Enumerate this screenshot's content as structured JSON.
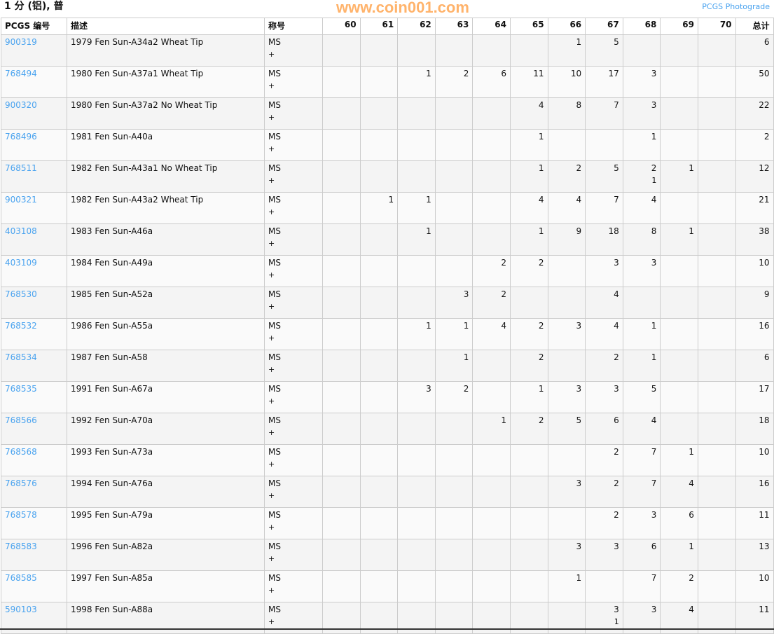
{
  "title": "1 分 (铝), 普",
  "photograde_link": "PCGS Photograde",
  "headers": [
    "PCGS 编号",
    "描述",
    "称号",
    "60",
    "61",
    "62",
    "63",
    "64",
    "65",
    "66",
    "67",
    "68",
    "69",
    "70",
    "总计"
  ],
  "rows": [
    {
      "id": "900319",
      "desc": "1979 Fen Sun-A34a2 Wheat Tip",
      "des": "MS",
      "plus": "+",
      "g": [
        "",
        "",
        "",
        "",
        "",
        "",
        "1",
        "5",
        "",
        "",
        ""
      ],
      "p": [
        "",
        "",
        "",
        "",
        "",
        "",
        "",
        "",
        "",
        "",
        ""
      ],
      "total": "6"
    },
    {
      "id": "768494",
      "desc": "1980 Fen Sun-A37a1 Wheat Tip",
      "des": "MS",
      "plus": "+",
      "g": [
        "",
        "",
        "1",
        "2",
        "6",
        "11",
        "10",
        "17",
        "3",
        "",
        ""
      ],
      "p": [
        "",
        "",
        "",
        "",
        "",
        "",
        "",
        "",
        "",
        "",
        ""
      ],
      "total": "50"
    },
    {
      "id": "900320",
      "desc": "1980 Fen Sun-A37a2 No Wheat Tip",
      "des": "MS",
      "plus": "+",
      "g": [
        "",
        "",
        "",
        "",
        "",
        "4",
        "8",
        "7",
        "3",
        "",
        ""
      ],
      "p": [
        "",
        "",
        "",
        "",
        "",
        "",
        "",
        "",
        "",
        "",
        ""
      ],
      "total": "22"
    },
    {
      "id": "768496",
      "desc": "1981 Fen Sun-A40a",
      "des": "MS",
      "plus": "+",
      "g": [
        "",
        "",
        "",
        "",
        "",
        "1",
        "",
        "",
        "1",
        "",
        ""
      ],
      "p": [
        "",
        "",
        "",
        "",
        "",
        "",
        "",
        "",
        "",
        "",
        ""
      ],
      "total": "2"
    },
    {
      "id": "768511",
      "desc": "1982 Fen Sun-A43a1 No Wheat Tip",
      "des": "MS",
      "plus": "+",
      "g": [
        "",
        "",
        "",
        "",
        "",
        "1",
        "2",
        "5",
        "2",
        "1",
        ""
      ],
      "p": [
        "",
        "",
        "",
        "",
        "",
        "",
        "",
        "",
        "1",
        "",
        ""
      ],
      "total": "12"
    },
    {
      "id": "900321",
      "desc": "1982 Fen Sun-A43a2 Wheat Tip",
      "des": "MS",
      "plus": "+",
      "g": [
        "",
        "1",
        "1",
        "",
        "",
        "4",
        "4",
        "7",
        "4",
        "",
        ""
      ],
      "p": [
        "",
        "",
        "",
        "",
        "",
        "",
        "",
        "",
        "",
        "",
        ""
      ],
      "total": "21"
    },
    {
      "id": "403108",
      "desc": "1983 Fen Sun-A46a",
      "des": "MS",
      "plus": "+",
      "g": [
        "",
        "",
        "1",
        "",
        "",
        "1",
        "9",
        "18",
        "8",
        "1",
        ""
      ],
      "p": [
        "",
        "",
        "",
        "",
        "",
        "",
        "",
        "",
        "",
        "",
        ""
      ],
      "total": "38"
    },
    {
      "id": "403109",
      "desc": "1984 Fen Sun-A49a",
      "des": "MS",
      "plus": "+",
      "g": [
        "",
        "",
        "",
        "",
        "2",
        "2",
        "",
        "3",
        "3",
        "",
        ""
      ],
      "p": [
        "",
        "",
        "",
        "",
        "",
        "",
        "",
        "",
        "",
        "",
        ""
      ],
      "total": "10"
    },
    {
      "id": "768530",
      "desc": "1985 Fen Sun-A52a",
      "des": "MS",
      "plus": "+",
      "g": [
        "",
        "",
        "",
        "3",
        "2",
        "",
        "",
        "4",
        "",
        "",
        ""
      ],
      "p": [
        "",
        "",
        "",
        "",
        "",
        "",
        "",
        "",
        "",
        "",
        ""
      ],
      "total": "9"
    },
    {
      "id": "768532",
      "desc": "1986 Fen Sun-A55a",
      "des": "MS",
      "plus": "+",
      "g": [
        "",
        "",
        "1",
        "1",
        "4",
        "2",
        "3",
        "4",
        "1",
        "",
        ""
      ],
      "p": [
        "",
        "",
        "",
        "",
        "",
        "",
        "",
        "",
        "",
        "",
        ""
      ],
      "total": "16"
    },
    {
      "id": "768534",
      "desc": "1987 Fen Sun-A58",
      "des": "MS",
      "plus": "+",
      "g": [
        "",
        "",
        "",
        "1",
        "",
        "2",
        "",
        "2",
        "1",
        "",
        ""
      ],
      "p": [
        "",
        "",
        "",
        "",
        "",
        "",
        "",
        "",
        "",
        "",
        ""
      ],
      "total": "6"
    },
    {
      "id": "768535",
      "desc": "1991 Fen Sun-A67a",
      "des": "MS",
      "plus": "+",
      "g": [
        "",
        "",
        "3",
        "2",
        "",
        "1",
        "3",
        "3",
        "5",
        "",
        ""
      ],
      "p": [
        "",
        "",
        "",
        "",
        "",
        "",
        "",
        "",
        "",
        "",
        ""
      ],
      "total": "17"
    },
    {
      "id": "768566",
      "desc": "1992 Fen Sun-A70a",
      "des": "MS",
      "plus": "+",
      "g": [
        "",
        "",
        "",
        "",
        "1",
        "2",
        "5",
        "6",
        "4",
        "",
        ""
      ],
      "p": [
        "",
        "",
        "",
        "",
        "",
        "",
        "",
        "",
        "",
        "",
        ""
      ],
      "total": "18"
    },
    {
      "id": "768568",
      "desc": "1993 Fen Sun-A73a",
      "des": "MS",
      "plus": "+",
      "g": [
        "",
        "",
        "",
        "",
        "",
        "",
        "",
        "2",
        "7",
        "1",
        ""
      ],
      "p": [
        "",
        "",
        "",
        "",
        "",
        "",
        "",
        "",
        "",
        "",
        ""
      ],
      "total": "10"
    },
    {
      "id": "768576",
      "desc": "1994 Fen Sun-A76a",
      "des": "MS",
      "plus": "+",
      "g": [
        "",
        "",
        "",
        "",
        "",
        "",
        "3",
        "2",
        "7",
        "4",
        ""
      ],
      "p": [
        "",
        "",
        "",
        "",
        "",
        "",
        "",
        "",
        "",
        "",
        ""
      ],
      "total": "16"
    },
    {
      "id": "768578",
      "desc": "1995 Fen Sun-A79a",
      "des": "MS",
      "plus": "+",
      "g": [
        "",
        "",
        "",
        "",
        "",
        "",
        "",
        "2",
        "3",
        "6",
        ""
      ],
      "p": [
        "",
        "",
        "",
        "",
        "",
        "",
        "",
        "",
        "",
        "",
        ""
      ],
      "total": "11"
    },
    {
      "id": "768583",
      "desc": "1996 Fen Sun-A82a",
      "des": "MS",
      "plus": "+",
      "g": [
        "",
        "",
        "",
        "",
        "",
        "",
        "3",
        "3",
        "6",
        "1",
        ""
      ],
      "p": [
        "",
        "",
        "",
        "",
        "",
        "",
        "",
        "",
        "",
        "",
        ""
      ],
      "total": "13"
    },
    {
      "id": "768585",
      "desc": "1997 Fen Sun-A85a",
      "des": "MS",
      "plus": "+",
      "g": [
        "",
        "",
        "",
        "",
        "",
        "",
        "1",
        "",
        "7",
        "2",
        ""
      ],
      "p": [
        "",
        "",
        "",
        "",
        "",
        "",
        "",
        "",
        "",
        "",
        ""
      ],
      "total": "10"
    },
    {
      "id": "590103",
      "desc": "1998 Fen Sun-A88a",
      "des": "MS",
      "plus": "+",
      "g": [
        "",
        "",
        "",
        "",
        "",
        "",
        "",
        "3",
        "3",
        "4",
        ""
      ],
      "p": [
        "",
        "",
        "",
        "",
        "",
        "",
        "",
        "1",
        "",
        "",
        ""
      ],
      "total": "11"
    }
  ],
  "watermark": "www.coin001.com",
  "colors": {
    "link": "#4aa3ef",
    "row_odd": "#f4f4f4",
    "row_even": "#fafafa",
    "border": "#cccccc"
  }
}
